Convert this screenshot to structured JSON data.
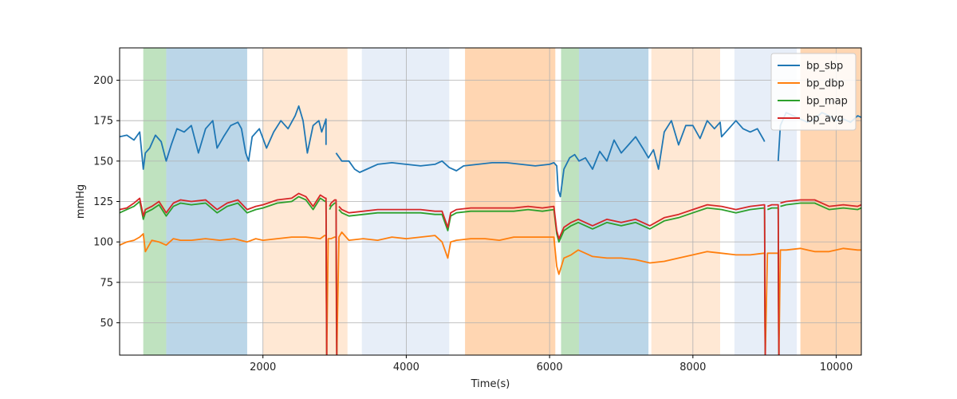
{
  "chart_data": {
    "type": "line",
    "title": "",
    "xlabel": "Time(s)",
    "ylabel": "mmHg",
    "xlim": [
      0,
      10350
    ],
    "ylim": [
      30,
      220
    ],
    "x_ticks": [
      2000,
      4000,
      6000,
      8000,
      10000
    ],
    "y_ticks": [
      50,
      75,
      100,
      125,
      150,
      175,
      200
    ],
    "x_tick_labels": [
      "2000",
      "4000",
      "6000",
      "8000",
      "10000"
    ],
    "y_tick_labels": [
      "50",
      "75",
      "100",
      "125",
      "150",
      "175",
      "200"
    ],
    "grid": true,
    "legend_position": "upper-right",
    "shaded_regions": [
      {
        "x0": 330,
        "x1": 650,
        "color": "#2ca02c",
        "opacity": 0.3
      },
      {
        "x0": 650,
        "x1": 1780,
        "color": "#1f77b4",
        "opacity": 0.3
      },
      {
        "x0": 2000,
        "x1": 3180,
        "color": "#ff7f0e",
        "opacity": 0.18
      },
      {
        "x0": 3380,
        "x1": 4600,
        "color": "#aec7e8",
        "opacity": 0.3
      },
      {
        "x0": 4820,
        "x1": 6080,
        "color": "#ff7f0e",
        "opacity": 0.32
      },
      {
        "x0": 6160,
        "x1": 6410,
        "color": "#2ca02c",
        "opacity": 0.3
      },
      {
        "x0": 6410,
        "x1": 7380,
        "color": "#1f77b4",
        "opacity": 0.3
      },
      {
        "x0": 7420,
        "x1": 8380,
        "color": "#ff7f0e",
        "opacity": 0.18
      },
      {
        "x0": 8580,
        "x1": 9450,
        "color": "#aec7e8",
        "opacity": 0.3
      },
      {
        "x0": 9500,
        "x1": 10350,
        "color": "#ff7f0e",
        "opacity": 0.32
      }
    ],
    "series": [
      {
        "name": "bp_sbp",
        "color": "#1f77b4",
        "x": [
          0,
          100,
          200,
          280,
          330,
          360,
          420,
          500,
          580,
          650,
          720,
          800,
          900,
          1000,
          1100,
          1200,
          1300,
          1360,
          1450,
          1550,
          1650,
          1700,
          1760,
          1800,
          1850,
          1950,
          2050,
          2150,
          2250,
          2350,
          2450,
          2500,
          2560,
          2620,
          2700,
          2780,
          2820,
          2880,
          2880,
          null,
          3020,
          3100,
          3200,
          3280,
          3350,
          3450,
          3600,
          3800,
          4000,
          4200,
          4400,
          4500,
          4600,
          4700,
          4800,
          5000,
          5200,
          5400,
          5600,
          5800,
          6000,
          6060,
          6100,
          6120,
          6150,
          6200,
          6280,
          6350,
          6410,
          6500,
          6600,
          6700,
          6800,
          6900,
          7000,
          7100,
          7200,
          7300,
          7380,
          7450,
          7520,
          7600,
          7700,
          7800,
          7900,
          8000,
          8100,
          8200,
          8300,
          8380,
          8400,
          8500,
          8600,
          8700,
          8800,
          8900,
          8990,
          9000,
          null,
          9190,
          9220,
          9260,
          9300,
          9400,
          9500,
          9600,
          9700,
          9800,
          9900,
          10000,
          10100,
          10200,
          10300,
          10350
        ],
        "y": [
          165,
          166,
          163,
          168,
          145,
          155,
          158,
          166,
          162,
          150,
          160,
          170,
          168,
          172,
          155,
          170,
          175,
          158,
          165,
          172,
          174,
          170,
          155,
          150,
          165,
          170,
          158,
          168,
          175,
          170,
          178,
          184,
          175,
          155,
          172,
          175,
          168,
          176,
          160,
          null,
          155,
          150,
          150,
          145,
          143,
          145,
          148,
          149,
          148,
          147,
          148,
          150,
          146,
          144,
          147,
          148,
          149,
          149,
          148,
          147,
          148,
          149,
          147,
          132,
          128,
          145,
          152,
          154,
          150,
          152,
          145,
          156,
          150,
          163,
          155,
          160,
          165,
          158,
          152,
          157,
          145,
          168,
          175,
          160,
          172,
          172,
          164,
          175,
          170,
          174,
          165,
          170,
          175,
          170,
          168,
          170,
          163,
          162,
          null,
          150,
          172,
          176,
          180,
          178,
          176,
          174,
          176,
          180,
          178,
          175,
          176,
          174,
          178,
          177
        ]
      },
      {
        "name": "bp_dbp",
        "color": "#ff7f0e",
        "x": [
          0,
          100,
          200,
          280,
          330,
          360,
          450,
          550,
          650,
          750,
          850,
          1000,
          1200,
          1400,
          1600,
          1780,
          1900,
          2000,
          2200,
          2400,
          2600,
          2800,
          2860,
          2880,
          2885,
          2890,
          2910,
          2930,
          2950,
          3000,
          3020,
          3025,
          3030,
          3060,
          3100,
          3200,
          3400,
          3600,
          3800,
          4000,
          4200,
          4400,
          4500,
          4580,
          4620,
          4700,
          4900,
          5100,
          5300,
          5500,
          5700,
          5900,
          6060,
          6100,
          6130,
          6200,
          6300,
          6400,
          6600,
          6800,
          7000,
          7200,
          7400,
          7600,
          7800,
          8000,
          8200,
          8400,
          8600,
          8800,
          8990,
          9000,
          9005,
          9010,
          9040,
          9100,
          9190,
          9195,
          9200,
          9220,
          9300,
          9500,
          9700,
          9900,
          10100,
          10300,
          10350
        ],
        "y": [
          98,
          100,
          101,
          103,
          105,
          94,
          101,
          100,
          98,
          102,
          101,
          101,
          102,
          101,
          102,
          100,
          102,
          101,
          102,
          103,
          103,
          102,
          104,
          104,
          63,
          30,
          102,
          102,
          102,
          103,
          103,
          53,
          30,
          103,
          106,
          101,
          102,
          101,
          103,
          102,
          103,
          104,
          100,
          90,
          100,
          101,
          102,
          102,
          101,
          103,
          103,
          103,
          103,
          85,
          80,
          90,
          92,
          95,
          91,
          90,
          90,
          89,
          87,
          88,
          90,
          92,
          94,
          93,
          92,
          92,
          93,
          93,
          48,
          30,
          93,
          93,
          93,
          48,
          30,
          95,
          95,
          96,
          94,
          94,
          96,
          95,
          95
        ]
      },
      {
        "name": "bp_map",
        "color": "#2ca02c",
        "x": [
          0,
          100,
          200,
          280,
          330,
          360,
          450,
          550,
          650,
          750,
          850,
          1000,
          1200,
          1360,
          1500,
          1650,
          1780,
          1900,
          2000,
          2200,
          2400,
          2500,
          2600,
          2700,
          2800,
          2870,
          2880,
          2885,
          2890,
          null,
          2930,
          2950,
          3000,
          3020,
          3025,
          3030,
          null,
          3060,
          3100,
          3200,
          3400,
          3600,
          3800,
          4000,
          4200,
          4400,
          4500,
          4580,
          4620,
          4700,
          4900,
          5100,
          5300,
          5500,
          5700,
          5900,
          6060,
          6100,
          6130,
          6200,
          6300,
          6400,
          6600,
          6800,
          7000,
          7200,
          7400,
          7600,
          7800,
          8000,
          8200,
          8400,
          8600,
          8800,
          8990,
          9000,
          9005,
          9010,
          null,
          9040,
          9100,
          9190,
          9195,
          9200,
          null,
          9220,
          9300,
          9500,
          9700,
          9900,
          10100,
          10300,
          10350
        ],
        "y": [
          118,
          120,
          122,
          125,
          114,
          118,
          120,
          123,
          116,
          122,
          124,
          123,
          124,
          118,
          122,
          124,
          118,
          120,
          121,
          124,
          125,
          128,
          126,
          120,
          127,
          125,
          125,
          82,
          30,
          null,
          120,
          122,
          124,
          124,
          78,
          30,
          null,
          120,
          118,
          116,
          117,
          118,
          118,
          118,
          118,
          117,
          117,
          107,
          116,
          118,
          119,
          119,
          119,
          119,
          120,
          119,
          120,
          105,
          100,
          107,
          110,
          112,
          108,
          112,
          110,
          112,
          108,
          113,
          115,
          118,
          121,
          120,
          118,
          120,
          121,
          121,
          69,
          30,
          null,
          120,
          121,
          121,
          69,
          30,
          null,
          122,
          123,
          124,
          124,
          120,
          121,
          120,
          121
        ]
      },
      {
        "name": "bp_avg",
        "color": "#d62728",
        "x": [
          0,
          100,
          200,
          280,
          330,
          360,
          450,
          550,
          650,
          750,
          850,
          1000,
          1200,
          1360,
          1500,
          1650,
          1780,
          1900,
          2000,
          2200,
          2400,
          2500,
          2600,
          2700,
          2800,
          2870,
          2880,
          2885,
          2890,
          null,
          2930,
          2950,
          3000,
          3020,
          3025,
          3030,
          null,
          3060,
          3100,
          3200,
          3400,
          3600,
          3800,
          4000,
          4200,
          4400,
          4500,
          4580,
          4620,
          4700,
          4900,
          5100,
          5300,
          5500,
          5700,
          5900,
          6060,
          6100,
          6130,
          6200,
          6300,
          6400,
          6600,
          6800,
          7000,
          7200,
          7400,
          7600,
          7800,
          8000,
          8200,
          8400,
          8600,
          8800,
          8990,
          9000,
          9005,
          9010,
          null,
          9040,
          9100,
          9190,
          9195,
          9200,
          null,
          9220,
          9300,
          9500,
          9700,
          9900,
          10100,
          10300,
          10350
        ],
        "y": [
          120,
          121,
          124,
          127,
          116,
          120,
          122,
          125,
          118,
          124,
          126,
          125,
          126,
          120,
          124,
          126,
          120,
          122,
          123,
          126,
          127,
          130,
          128,
          122,
          129,
          127,
          127,
          82,
          30,
          null,
          122,
          124,
          126,
          126,
          78,
          30,
          null,
          122,
          120,
          118,
          119,
          120,
          120,
          120,
          120,
          119,
          119,
          109,
          118,
          120,
          121,
          121,
          121,
          121,
          122,
          121,
          122,
          107,
          102,
          109,
          112,
          114,
          110,
          114,
          112,
          114,
          110,
          115,
          117,
          120,
          123,
          122,
          120,
          122,
          123,
          123,
          69,
          30,
          null,
          122,
          123,
          123,
          69,
          30,
          null,
          124,
          125,
          126,
          126,
          122,
          123,
          122,
          123
        ]
      }
    ]
  }
}
